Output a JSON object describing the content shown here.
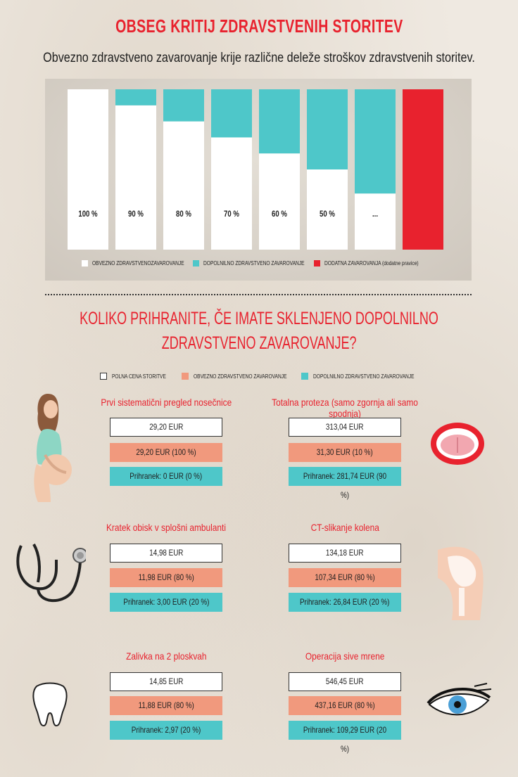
{
  "header": {
    "title": "OBSEG KRITIJ ZDRAVSTVENIH STORITEV",
    "subtitle": "Obvezno zdravstveno zavarovanje krije različne deleže stroškov zdravstvenih storitev."
  },
  "chart_data": {
    "type": "bar",
    "stacked": true,
    "categories": [
      "100 %",
      "90 %",
      "80 %",
      "70 %",
      "60 %",
      "50 %",
      "...",
      ""
    ],
    "series": [
      {
        "name": "OBVEZNO ZDRAVSTVENOZAVAROVANJE",
        "color": "#ffffff",
        "values": [
          100,
          90,
          80,
          70,
          60,
          50,
          35,
          0
        ]
      },
      {
        "name": "DOPOLNILNO ZDRAVSTVENO ZAVAROVANJE",
        "color": "#4ec7c9",
        "values": [
          0,
          10,
          20,
          30,
          40,
          50,
          65,
          0
        ]
      },
      {
        "name": "DODATNA ZAVAROVANJA (dodatne pravice)",
        "color": "#e8222e",
        "values": [
          0,
          0,
          0,
          0,
          0,
          0,
          0,
          100
        ]
      }
    ],
    "ylim": [
      0,
      100
    ],
    "legend_position": "bottom"
  },
  "legend_chart": [
    {
      "label": "OBVEZNO ZDRAVSTVENOZAVAROVANJE",
      "color": "#ffffff"
    },
    {
      "label": "DOPOLNILNO ZDRAVSTVENO ZAVAROVANJE",
      "color": "#4ec7c9"
    },
    {
      "label": "DODATNA ZAVAROVANJA (dodatne pravice)",
      "color": "#e8222e"
    }
  ],
  "savings": {
    "title_line1": "KOLIKO PRIHRANITE, ČE IMATE SKLENJENO DOPOLNILNO",
    "title_line2": "ZDRAVSTVENO ZAVAROVANJE?",
    "legend": [
      {
        "label": "POLNA CENA STORITVE",
        "color": "#ffffff"
      },
      {
        "label": "OBVEZNO ZDRAVSTVENO ZAVAROVANJE",
        "color": "#f1997d"
      },
      {
        "label": "DOPOLNILNO ZDRAVSTVENO ZAVAROVANJE",
        "color": "#4ec7c9"
      }
    ],
    "cards": [
      {
        "title": "Prvi sistematični pregled nosečnice",
        "full": "29,20 EUR",
        "mandatory": "29,20 EUR (100 %)",
        "saving": "Prihranek: 0 EUR (0 %)",
        "icon": "pregnant-woman-icon"
      },
      {
        "title": "Totalna proteza (samo zgornja ali samo spodnja)",
        "full": "313,04 EUR",
        "mandatory": "31,30 EUR (10 %)",
        "saving": "Prihranek: 281,74 EUR (90 %)",
        "icon": "mouth-teeth-icon"
      },
      {
        "title": "Kratek obisk v splošni ambulanti",
        "full": "14,98 EUR",
        "mandatory": "11,98 EUR (80 %)",
        "saving": "Prihranek: 3,00 EUR (20 %)",
        "icon": "stethoscope-icon"
      },
      {
        "title": "CT-slikanje kolena",
        "full": "134,18 EUR",
        "mandatory": "107,34 EUR (80 %)",
        "saving": "Prihranek: 26,84 EUR (20 %)",
        "icon": "knee-icon"
      },
      {
        "title": "Zalivka na 2 ploskvah",
        "full": "14,85 EUR",
        "mandatory": "11,88 EUR (80 %)",
        "saving": "Prihranek: 2,97 (20 %)",
        "icon": "tooth-icon"
      },
      {
        "title": "Operacija sive mrene",
        "full": "546,45 EUR",
        "mandatory": "437,16 EUR (80 %)",
        "saving": "Prihranek: 109,29 EUR (20 %)",
        "icon": "eye-icon"
      }
    ]
  }
}
